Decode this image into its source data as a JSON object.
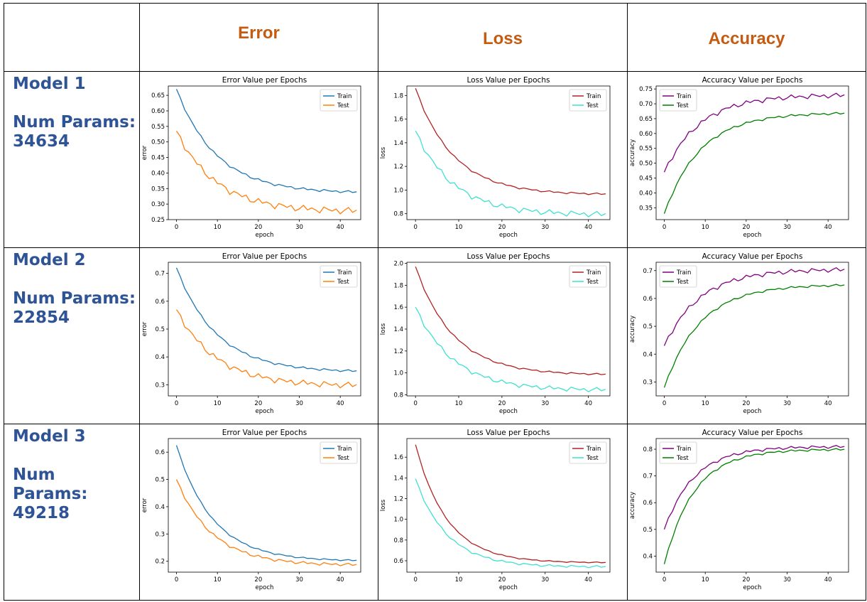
{
  "header": {
    "error": "Error",
    "loss": "Loss",
    "accuracy": "Accuracy"
  },
  "models": [
    {
      "name": "Model 1",
      "params_lines": [
        "Num Params:",
        "34634"
      ]
    },
    {
      "name": "Model 2",
      "params_lines": [
        "Num Params:",
        "22854"
      ]
    },
    {
      "name": "Model 3",
      "params_lines": [
        "Num",
        "Params:",
        "49218"
      ]
    }
  ],
  "colors": {
    "header": "#c55a11",
    "model": "#2f5496",
    "error_train": "#1f77b4",
    "error_test": "#ff7f0e",
    "loss_train": "#b22222",
    "loss_test": "#40e0d0",
    "acc_train": "#800080",
    "acc_test": "#008000"
  },
  "chart_data": [
    {
      "id": "m1-error",
      "type": "line",
      "title": "Error Value per Epochs",
      "xlabel": "epoch",
      "ylabel": "error",
      "xlim": [
        -2,
        45
      ],
      "ylim": [
        0.25,
        0.68
      ],
      "xticks": [
        0,
        10,
        20,
        30,
        40
      ],
      "yticks": [
        0.25,
        0.3,
        0.35,
        0.4,
        0.45,
        0.5,
        0.55,
        0.6,
        0.65
      ],
      "tick_decimals": 2,
      "legend": "top-right",
      "series": [
        {
          "name": "Train",
          "color": "#1f77b4",
          "start": 0.67,
          "end": 0.335,
          "knee": 0.45,
          "rate": 4.5,
          "wobble": 0.003
        },
        {
          "name": "Test",
          "color": "#ff7f0e",
          "start": 0.535,
          "end": 0.275,
          "knee": 0.37,
          "rate": 4.5,
          "wobble": 0.008
        }
      ]
    },
    {
      "id": "m1-loss",
      "type": "line",
      "title": "Loss Value per Epochs",
      "xlabel": "epoch",
      "ylabel": "loss",
      "xlim": [
        -2,
        45
      ],
      "ylim": [
        0.75,
        1.88
      ],
      "xticks": [
        0,
        10,
        20,
        30,
        40
      ],
      "yticks": [
        0.8,
        1.0,
        1.2,
        1.4,
        1.6,
        1.8
      ],
      "tick_decimals": 1,
      "legend": "top-right",
      "series": [
        {
          "name": "Train",
          "color": "#b22222",
          "start": 1.86,
          "end": 0.96,
          "knee": 1.25,
          "rate": 5,
          "wobble": 0.006
        },
        {
          "name": "Test",
          "color": "#40e0d0",
          "start": 1.5,
          "end": 0.79,
          "knee": 1.05,
          "rate": 5,
          "wobble": 0.018
        }
      ]
    },
    {
      "id": "m1-acc",
      "type": "line",
      "title": "Accuracy Value per Epochs",
      "xlabel": "epoch",
      "ylabel": "accuracy",
      "xlim": [
        -2,
        45
      ],
      "ylim": [
        0.31,
        0.76
      ],
      "xticks": [
        0,
        10,
        20,
        30,
        40
      ],
      "yticks": [
        0.35,
        0.4,
        0.45,
        0.5,
        0.55,
        0.6,
        0.65,
        0.7,
        0.75
      ],
      "tick_decimals": 2,
      "legend": "top-left",
      "series": [
        {
          "name": "Train",
          "color": "#800080",
          "start": 0.47,
          "end": 0.73,
          "knee": 0.64,
          "rate": 5,
          "wobble": 0.006
        },
        {
          "name": "Test",
          "color": "#008000",
          "start": 0.33,
          "end": 0.67,
          "knee": 0.57,
          "rate": 5,
          "wobble": 0.003
        }
      ]
    },
    {
      "id": "m2-error",
      "type": "line",
      "title": "Error Value per Epochs",
      "xlabel": "epoch",
      "ylabel": "error",
      "xlim": [
        -2,
        45
      ],
      "ylim": [
        0.26,
        0.74
      ],
      "xticks": [
        0,
        10,
        20,
        30,
        40
      ],
      "yticks": [
        0.3,
        0.4,
        0.5,
        0.6,
        0.7
      ],
      "tick_decimals": 1,
      "legend": "top-right",
      "series": [
        {
          "name": "Train",
          "color": "#1f77b4",
          "start": 0.72,
          "end": 0.345,
          "knee": 0.47,
          "rate": 4.5,
          "wobble": 0.003
        },
        {
          "name": "Test",
          "color": "#ff7f0e",
          "start": 0.57,
          "end": 0.295,
          "knee": 0.4,
          "rate": 4.5,
          "wobble": 0.008
        }
      ]
    },
    {
      "id": "m2-loss",
      "type": "line",
      "title": "Loss Value per Epochs",
      "xlabel": "epoch",
      "ylabel": "loss",
      "xlim": [
        -2,
        45
      ],
      "ylim": [
        0.79,
        2.01
      ],
      "xticks": [
        0,
        10,
        20,
        30,
        40
      ],
      "yticks": [
        0.8,
        1.0,
        1.2,
        1.4,
        1.6,
        1.8,
        2.0
      ],
      "tick_decimals": 1,
      "legend": "top-right",
      "series": [
        {
          "name": "Train",
          "color": "#b22222",
          "start": 1.97,
          "end": 0.98,
          "knee": 1.3,
          "rate": 5,
          "wobble": 0.006
        },
        {
          "name": "Test",
          "color": "#40e0d0",
          "start": 1.6,
          "end": 0.84,
          "knee": 1.1,
          "rate": 5,
          "wobble": 0.015
        }
      ]
    },
    {
      "id": "m2-acc",
      "type": "line",
      "title": "Accuracy Value per Epochs",
      "xlabel": "epoch",
      "ylabel": "accuracy",
      "xlim": [
        -2,
        45
      ],
      "ylim": [
        0.25,
        0.73
      ],
      "xticks": [
        0,
        10,
        20,
        30,
        40
      ],
      "yticks": [
        0.3,
        0.4,
        0.5,
        0.6,
        0.7
      ],
      "tick_decimals": 1,
      "legend": "top-left",
      "series": [
        {
          "name": "Train",
          "color": "#800080",
          "start": 0.43,
          "end": 0.705,
          "knee": 0.6,
          "rate": 5,
          "wobble": 0.006
        },
        {
          "name": "Test",
          "color": "#008000",
          "start": 0.28,
          "end": 0.65,
          "knee": 0.54,
          "rate": 5,
          "wobble": 0.003
        }
      ]
    },
    {
      "id": "m3-error",
      "type": "line",
      "title": "Error Value per Epochs",
      "xlabel": "epoch",
      "ylabel": "error",
      "xlim": [
        -2,
        45
      ],
      "ylim": [
        0.16,
        0.65
      ],
      "xticks": [
        0,
        10,
        20,
        30,
        40
      ],
      "yticks": [
        0.2,
        0.3,
        0.4,
        0.5,
        0.6
      ],
      "tick_decimals": 1,
      "legend": "top-right",
      "series": [
        {
          "name": "Train",
          "color": "#1f77b4",
          "start": 0.625,
          "end": 0.2,
          "knee": 0.36,
          "rate": 5,
          "wobble": 0.002
        },
        {
          "name": "Test",
          "color": "#ff7f0e",
          "start": 0.5,
          "end": 0.185,
          "knee": 0.3,
          "rate": 5,
          "wobble": 0.004
        }
      ]
    },
    {
      "id": "m3-loss",
      "type": "line",
      "title": "Loss Value per Epochs",
      "xlabel": "epoch",
      "ylabel": "loss",
      "xlim": [
        -2,
        45
      ],
      "ylim": [
        0.49,
        1.78
      ],
      "xticks": [
        0,
        10,
        20,
        30,
        40
      ],
      "yticks": [
        0.6,
        0.8,
        1.0,
        1.2,
        1.4,
        1.6
      ],
      "tick_decimals": 1,
      "legend": "top-right",
      "series": [
        {
          "name": "Train",
          "color": "#b22222",
          "start": 1.72,
          "end": 0.58,
          "knee": 1.05,
          "rate": 6,
          "wobble": 0.004
        },
        {
          "name": "Test",
          "color": "#40e0d0",
          "start": 1.39,
          "end": 0.54,
          "knee": 0.86,
          "rate": 6,
          "wobble": 0.008
        }
      ]
    },
    {
      "id": "m3-acc",
      "type": "line",
      "title": "Accuracy Value per Epochs",
      "xlabel": "epoch",
      "ylabel": "accuracy",
      "xlim": [
        -2,
        45
      ],
      "ylim": [
        0.34,
        0.84
      ],
      "xticks": [
        0,
        10,
        20,
        30,
        40
      ],
      "yticks": [
        0.4,
        0.5,
        0.6,
        0.7,
        0.8
      ],
      "tick_decimals": 1,
      "legend": "top-left",
      "series": [
        {
          "name": "Train",
          "color": "#800080",
          "start": 0.5,
          "end": 0.81,
          "knee": 0.71,
          "rate": 6,
          "wobble": 0.004
        },
        {
          "name": "Test",
          "color": "#008000",
          "start": 0.37,
          "end": 0.8,
          "knee": 0.65,
          "rate": 6,
          "wobble": 0.003
        }
      ]
    }
  ]
}
